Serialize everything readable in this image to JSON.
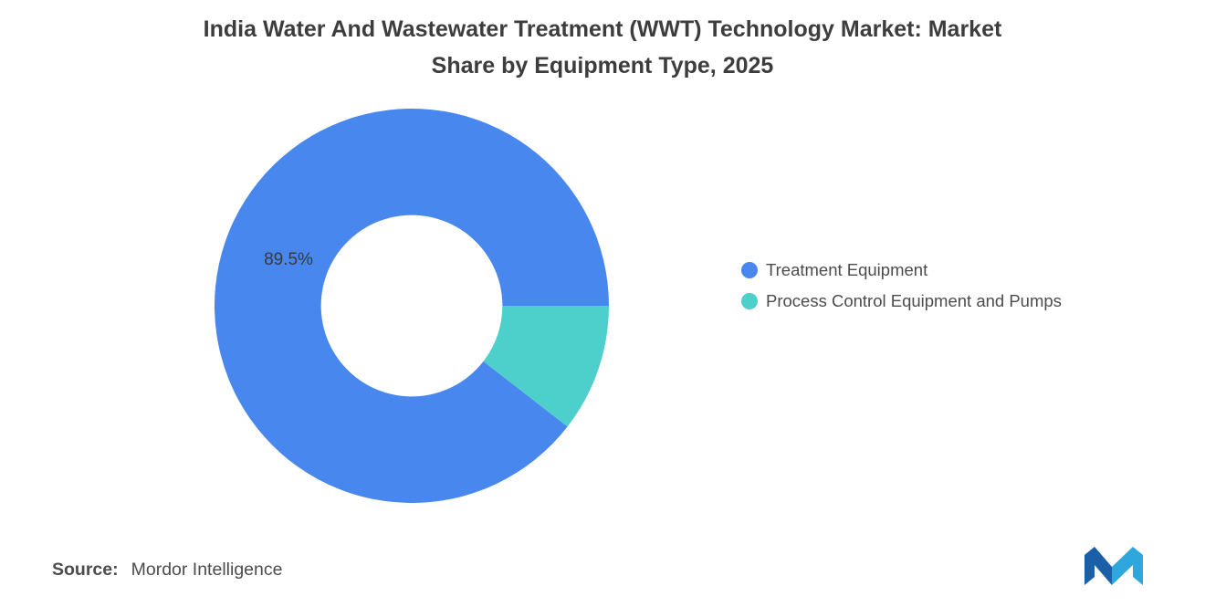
{
  "title_lines": [
    "India Water And Wastewater Treatment (WWT) Technology Market: Market",
    "Share by Equipment Type, 2025"
  ],
  "source": {
    "prefix": "Source:",
    "text": "Mordor Intelligence"
  },
  "logo": {
    "name": "mordor-intelligence-logo",
    "color_dark": "#1A5FA8",
    "color_light": "#2EA8DC"
  },
  "chart_data": {
    "type": "pie",
    "subtype": "donut",
    "title": "India Water And Wastewater Treatment (WWT) Technology Market: Market Share by Equipment Type, 2025",
    "units": "%",
    "categories": [
      "Treatment Equipment",
      "Process Control Equipment and Pumps"
    ],
    "values": [
      89.5,
      10.5
    ],
    "series": [
      {
        "name": "Treatment Equipment",
        "value": 89.5,
        "color": "#4887EE",
        "label": "89.5%"
      },
      {
        "name": "Process Control Equipment and Pumps",
        "value": 10.5,
        "color": "#4DCFCB",
        "label": ""
      }
    ],
    "legend_position": "right",
    "start_angle_deg": 37.8,
    "direction": "clockwise",
    "inner_radius_ratio": 0.46
  }
}
